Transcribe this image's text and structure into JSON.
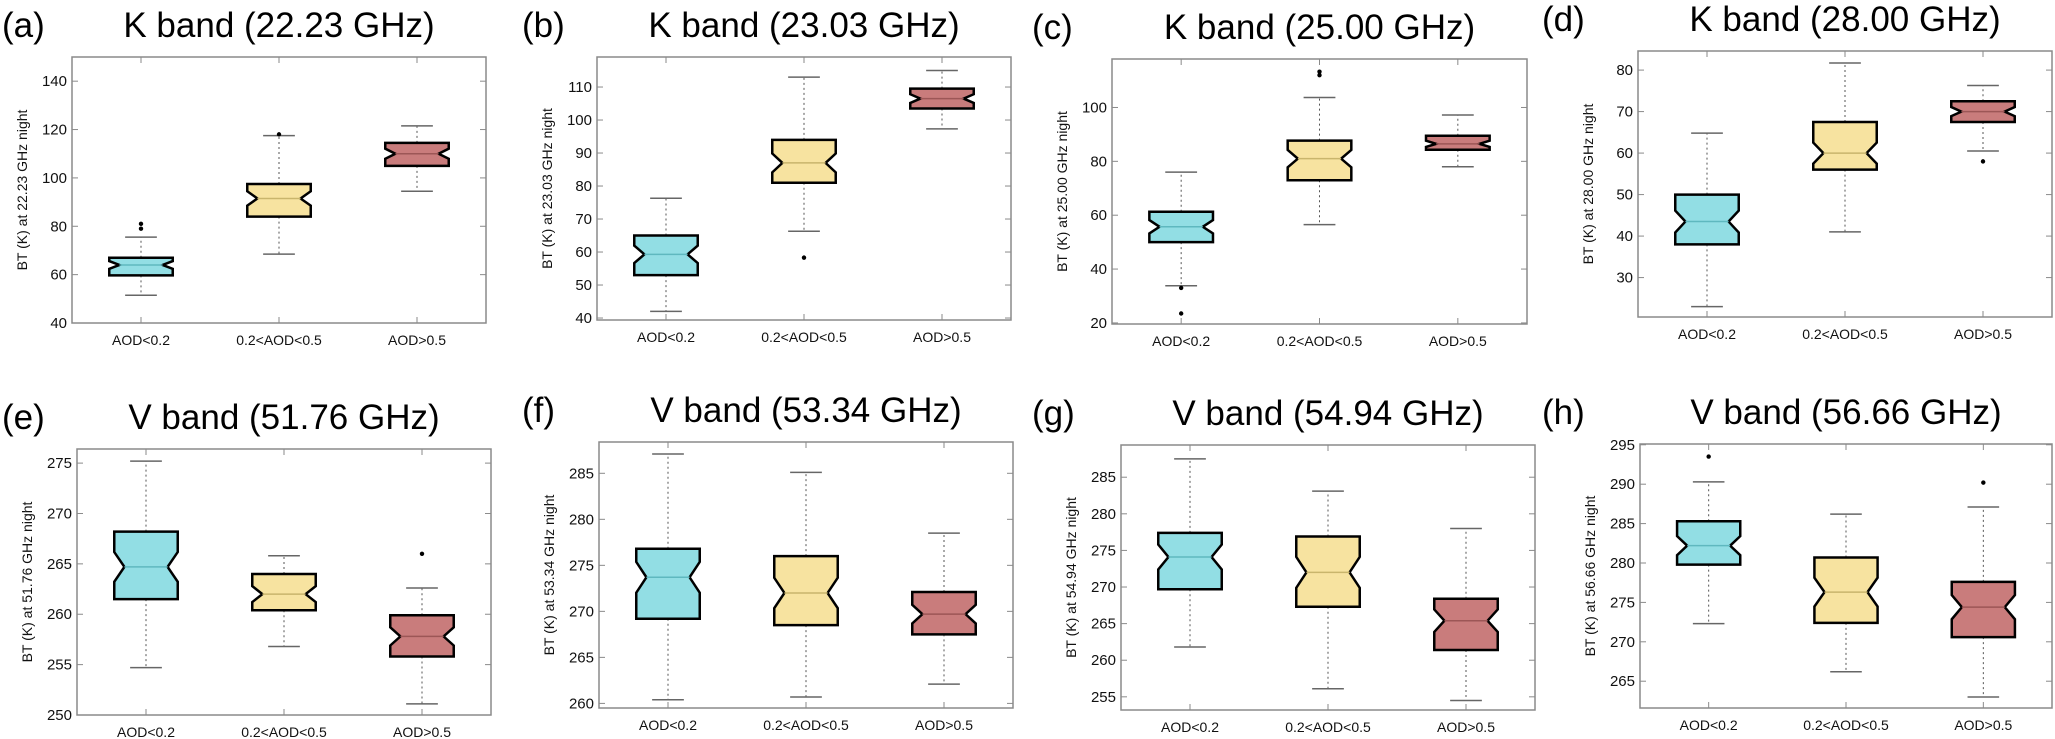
{
  "colors": {
    "low": "#92DEE4",
    "mid": "#F7E3A0",
    "high": "#C97C7C",
    "frame": "#8a8a8a"
  },
  "chart_data": [
    {
      "type": "box",
      "panel": "(a)",
      "title": "K  band (22.23 GHz)",
      "ylabel": "BT (K) at 22.23 GHz night",
      "categories": [
        "AOD<0.2",
        "0.2<AOD<0.5",
        "AOD>0.5"
      ],
      "ylim": [
        40,
        150
      ],
      "yticks": [
        40,
        60,
        80,
        100,
        120,
        140
      ],
      "boxes": [
        {
          "q1": 59.7,
          "median": 64,
          "q3": 67,
          "wlo": 51.5,
          "whi": 75.5,
          "outliers": [
            79,
            81
          ]
        },
        {
          "q1": 84,
          "median": 91.5,
          "q3": 97.5,
          "wlo": 68.5,
          "whi": 117.5,
          "outliers": [
            118
          ]
        },
        {
          "q1": 105,
          "median": 110,
          "q3": 114.5,
          "wlo": 94.5,
          "whi": 121.5,
          "outliers": []
        }
      ]
    },
    {
      "type": "box",
      "panel": "(b)",
      "title": "K  band (23.03 GHz)",
      "ylabel": "BT (K) at 23.03 GHz night",
      "categories": [
        "AOD<0.2",
        "0.2<AOD<0.5",
        "AOD>0.5"
      ],
      "ylim": [
        39.4,
        119.1
      ],
      "yticks": [
        40,
        50,
        60,
        70,
        80,
        90,
        100,
        110
      ],
      "boxes": [
        {
          "q1": 53,
          "median": 59.3,
          "q3": 65,
          "wlo": 42,
          "whi": 76.3,
          "outliers": []
        },
        {
          "q1": 81,
          "median": 87,
          "q3": 94,
          "wlo": 66.3,
          "whi": 113,
          "outliers": [
            58.3
          ]
        },
        {
          "q1": 103.5,
          "median": 106.5,
          "q3": 109.5,
          "wlo": 97.3,
          "whi": 115,
          "outliers": []
        }
      ]
    },
    {
      "type": "box",
      "panel": "(c)",
      "title": "K  band (25.00 GHz)",
      "ylabel": "BT (K) at 25.00 GHz night",
      "categories": [
        "AOD<0.2",
        "0.2<AOD<0.5",
        "AOD>0.5"
      ],
      "ylim": [
        19.6,
        118
      ],
      "yticks": [
        20,
        40,
        60,
        80,
        100
      ],
      "boxes": [
        {
          "q1": 50,
          "median": 55.7,
          "q3": 61.3,
          "wlo": 33.8,
          "whi": 76,
          "outliers": [
            33,
            23.5
          ]
        },
        {
          "q1": 73,
          "median": 81,
          "q3": 87.7,
          "wlo": 56.5,
          "whi": 103.7,
          "outliers": [
            112,
            113.3
          ]
        },
        {
          "q1": 84.3,
          "median": 86.5,
          "q3": 89.5,
          "wlo": 78,
          "whi": 97.2,
          "outliers": []
        }
      ]
    },
    {
      "type": "box",
      "panel": "(d)",
      "title": "K  band (28.00 GHz)",
      "ylabel": "BT (K) at 28.00 GHz night",
      "categories": [
        "AOD<0.2",
        "0.2<AOD<0.5",
        "AOD>0.5"
      ],
      "ylim": [
        20.5,
        84.6
      ],
      "yticks": [
        30,
        40,
        50,
        60,
        70,
        80
      ],
      "boxes": [
        {
          "q1": 38,
          "median": 43.5,
          "q3": 50,
          "wlo": 23,
          "whi": 64.8,
          "outliers": []
        },
        {
          "q1": 56,
          "median": 60,
          "q3": 67.5,
          "wlo": 41,
          "whi": 81.7,
          "outliers": []
        },
        {
          "q1": 67.5,
          "median": 70,
          "q3": 72.5,
          "wlo": 60.5,
          "whi": 76.3,
          "outliers": [
            58
          ]
        }
      ]
    },
    {
      "type": "box",
      "panel": "(e)",
      "title": "V  band (51.76 GHz)",
      "ylabel": "BT (K) at 51.76 GHz night",
      "categories": [
        "AOD<0.2",
        "0.2<AOD<0.5",
        "AOD>0.5"
      ],
      "ylim": [
        250,
        276.4
      ],
      "yticks": [
        250,
        255,
        260,
        265,
        270,
        275
      ],
      "boxes": [
        {
          "q1": 261.5,
          "median": 264.7,
          "q3": 268.2,
          "wlo": 254.7,
          "whi": 275.2,
          "outliers": []
        },
        {
          "q1": 260.4,
          "median": 262,
          "q3": 264,
          "wlo": 256.8,
          "whi": 265.8,
          "outliers": []
        },
        {
          "q1": 255.8,
          "median": 257.8,
          "q3": 259.9,
          "wlo": 251.1,
          "whi": 262.6,
          "outliers": [
            266
          ]
        }
      ]
    },
    {
      "type": "box",
      "panel": "(f)",
      "title": "V  band (53.34 GHz)",
      "ylabel": "BT (K) at 53.34 GHz night",
      "categories": [
        "AOD<0.2",
        "0.2<AOD<0.5",
        "AOD>0.5"
      ],
      "ylim": [
        259.5,
        288.4
      ],
      "yticks": [
        260,
        265,
        270,
        275,
        280,
        285
      ],
      "boxes": [
        {
          "q1": 269.2,
          "median": 273.7,
          "q3": 276.8,
          "wlo": 260.4,
          "whi": 287.1,
          "outliers": []
        },
        {
          "q1": 268.5,
          "median": 272,
          "q3": 276,
          "wlo": 260.7,
          "whi": 285.1,
          "outliers": []
        },
        {
          "q1": 267.5,
          "median": 269.7,
          "q3": 272.1,
          "wlo": 262.1,
          "whi": 278.5,
          "outliers": []
        }
      ]
    },
    {
      "type": "box",
      "panel": "(g)",
      "title": "V  band (54.94 GHz)",
      "ylabel": "BT (K) at 54.94 GHz night",
      "categories": [
        "AOD<0.2",
        "0.2<AOD<0.5",
        "AOD>0.5"
      ],
      "ylim": [
        253.2,
        289.4
      ],
      "yticks": [
        255,
        260,
        265,
        270,
        275,
        280,
        285
      ],
      "boxes": [
        {
          "q1": 269.7,
          "median": 274.1,
          "q3": 277.4,
          "wlo": 261.8,
          "whi": 287.5,
          "outliers": []
        },
        {
          "q1": 267.3,
          "median": 272,
          "q3": 276.9,
          "wlo": 256.1,
          "whi": 283.1,
          "outliers": []
        },
        {
          "q1": 261.4,
          "median": 265.4,
          "q3": 268.4,
          "wlo": 254.5,
          "whi": 278,
          "outliers": []
        }
      ]
    },
    {
      "type": "box",
      "panel": "(h)",
      "title": "V  band (56.66 GHz)",
      "ylabel": "BT (K) at 56.66 GHz night",
      "categories": [
        "AOD<0.2",
        "0.2<AOD<0.5",
        "AOD>0.5"
      ],
      "ylim": [
        261.6,
        295.1
      ],
      "yticks": [
        265,
        270,
        275,
        280,
        285,
        290,
        295
      ],
      "boxes": [
        {
          "q1": 279.8,
          "median": 282.2,
          "q3": 285.3,
          "wlo": 272.3,
          "whi": 290.3,
          "outliers": [
            293.5
          ]
        },
        {
          "q1": 272.4,
          "median": 276.3,
          "q3": 280.7,
          "wlo": 266.2,
          "whi": 286.2,
          "outliers": []
        },
        {
          "q1": 270.6,
          "median": 274.4,
          "q3": 277.6,
          "wlo": 263,
          "whi": 287.1,
          "outliers": [
            290.2
          ]
        }
      ]
    }
  ]
}
